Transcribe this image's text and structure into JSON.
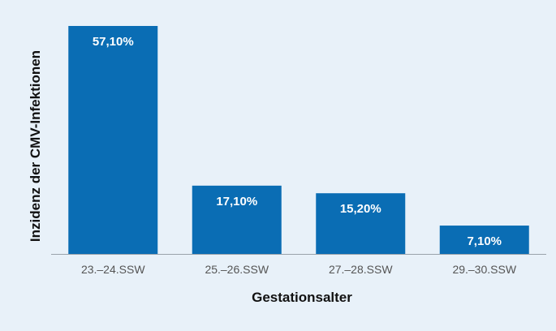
{
  "chart_data": {
    "type": "bar",
    "categories": [
      "23.–24.SSW",
      "25.–26.SSW",
      "27.–28.SSW",
      "29.–30.SSW"
    ],
    "values": [
      57.1,
      17.1,
      15.2,
      7.1
    ],
    "data_labels": [
      "57,10%",
      "17,10%",
      "15,20%",
      "7,10%"
    ],
    "title": "",
    "xlabel": "Gestationsalter",
    "ylabel": "Inzidenz der CMV-Infektionen",
    "ylim": [
      0,
      57.1
    ],
    "grid": false,
    "bar_color": "#0a6db4",
    "background_color": "#e8f1f9",
    "baseline_color": "#9aa3ab"
  }
}
